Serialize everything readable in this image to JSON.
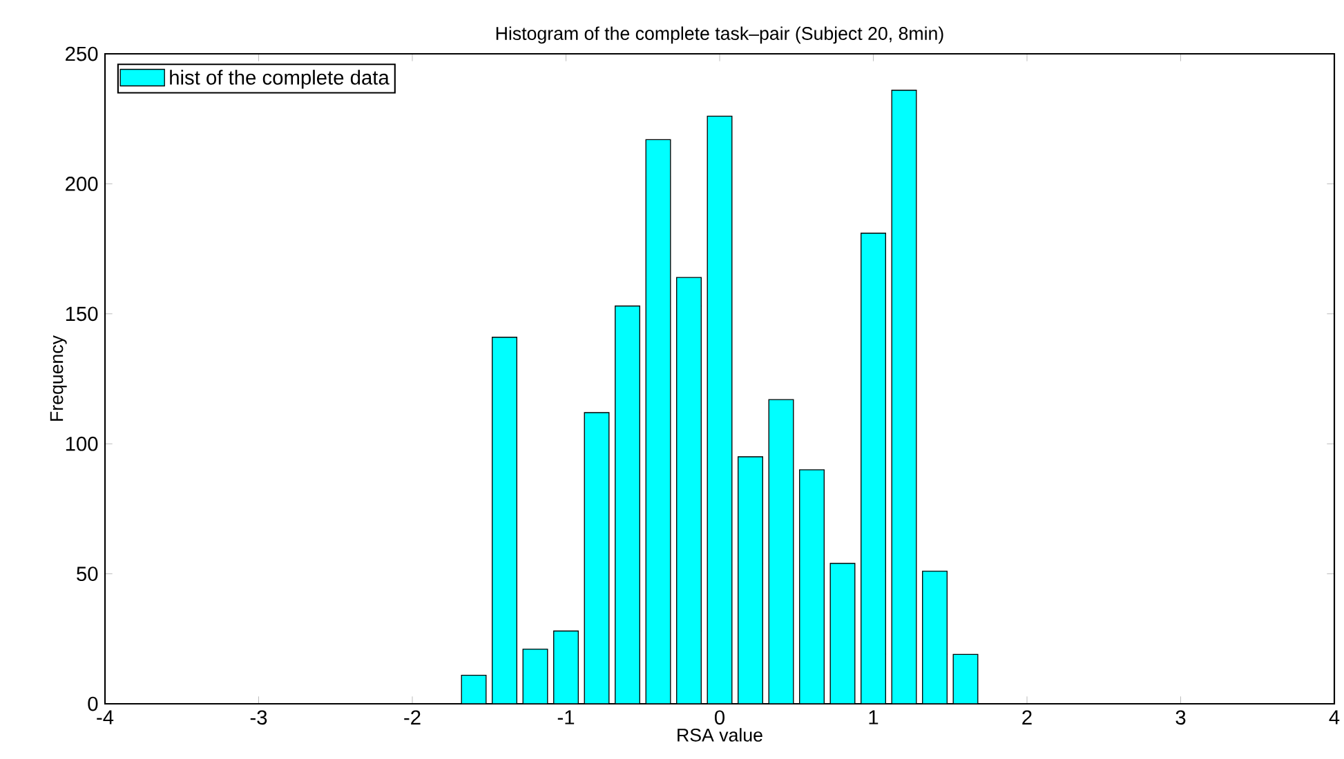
{
  "chart_data": {
    "type": "bar",
    "title": "Histogram of the complete task–pair (Subject 20, 8min)",
    "xlabel": "RSA value",
    "ylabel": "Frequency",
    "x": [
      -1.6,
      -1.4,
      -1.2,
      -1.0,
      -0.8,
      -0.6,
      -0.4,
      -0.2,
      0.0,
      0.2,
      0.4,
      0.6,
      0.8,
      1.0,
      1.2,
      1.4,
      1.6
    ],
    "series": [
      {
        "name": "hist of the complete data",
        "color": "#00ffff",
        "values": [
          11,
          141,
          21,
          28,
          112,
          153,
          217,
          164,
          226,
          95,
          117,
          90,
          54,
          181,
          236,
          51,
          19
        ]
      }
    ],
    "xlim": [
      -4,
      4
    ],
    "ylim": [
      0,
      250
    ],
    "xticks": [
      -4,
      -3,
      -2,
      -1,
      0,
      1,
      2,
      3,
      4
    ],
    "yticks": [
      0,
      50,
      100,
      150,
      200,
      250
    ],
    "grid": false,
    "legend": "top left"
  }
}
